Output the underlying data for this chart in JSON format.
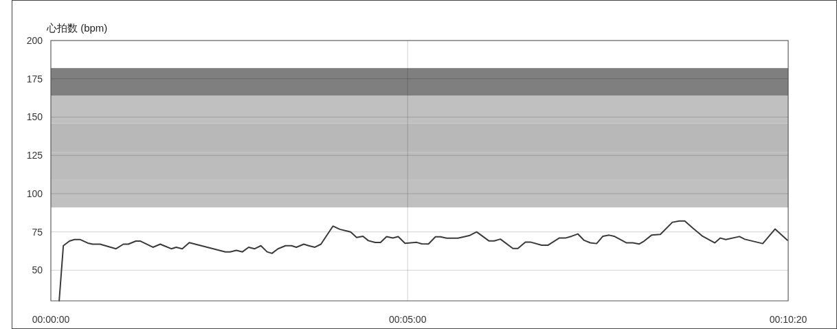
{
  "chart_data": {
    "type": "line",
    "ylabel": "心拍数 (bpm)",
    "xlim": [
      0,
      620
    ],
    "ylim": [
      30,
      200
    ],
    "xticks": [
      {
        "value": 0,
        "label": "00:00:00"
      },
      {
        "value": 300,
        "label": "00:05:00"
      },
      {
        "value": 620,
        "label": "00:10:20"
      }
    ],
    "yticks": [
      50,
      75,
      100,
      125,
      150,
      175,
      200
    ],
    "grid": true,
    "marker": "none",
    "line_style": "solid",
    "bands": [
      {
        "axis": "y",
        "from": 91,
        "to": 109,
        "color": "#c0c0c0"
      },
      {
        "axis": "y",
        "from": 109,
        "to": 127,
        "color": "#bcbcbc"
      },
      {
        "axis": "y",
        "from": 127,
        "to": 146,
        "color": "#b8b8b8"
      },
      {
        "axis": "y",
        "from": 146,
        "to": 164,
        "color": "#c0c0c0"
      },
      {
        "axis": "y",
        "from": 164,
        "to": 182,
        "color": "#7f7f7f"
      }
    ],
    "series": [
      {
        "color": "#3a3a3a",
        "x": [
          7,
          10.5,
          15.6,
          19.8,
          24.8,
          31.1,
          35.2,
          41.4,
          54.8,
          61,
          65.1,
          71.4,
          75.4,
          85.8,
          92,
          95.1,
          101.3,
          105.4,
          110.5,
          116.4,
          146.7,
          150.8,
          156,
          161.1,
          166.3,
          171.4,
          176.6,
          181.8,
          185.9,
          191,
          197.3,
          202.4,
          206.4,
          212.7,
          216.8,
          222,
          227.1,
          237.2,
          243,
          252.1,
          257.1,
          262.4,
          267,
          272.7,
          277.2,
          282.3,
          287.5,
          292.1,
          297.8,
          307.6,
          311.8,
          317.5,
          323.4,
          327.6,
          332.8,
          342.3,
          351.8,
          358,
          368.5,
          372.8,
          378,
          388.5,
          392.7,
          399,
          403.2,
          412.7,
          417.9,
          427.4,
          432.6,
          437.9,
          443.1,
          448.4,
          453.6,
          458.9,
          464.2,
          469.4,
          473.6,
          484.1,
          489.4,
          494.6,
          498.8,
          505.1,
          512.5,
          522.6,
          528.4,
          533,
          539.9,
          548,
          558.3,
          562.9,
          567.5,
          579,
          583.6,
          598.6,
          609,
          619.3
        ],
        "values": [
          30,
          66,
          69,
          70,
          70,
          67.7,
          67,
          67,
          64,
          67,
          67,
          69,
          69,
          65,
          67,
          66,
          64,
          65,
          64,
          68,
          62,
          62,
          63,
          62,
          65,
          64,
          66,
          62,
          61,
          64,
          66,
          66,
          65,
          67,
          66,
          65,
          67,
          78.8,
          76.7,
          75,
          71.4,
          72.2,
          69.3,
          68.1,
          68.1,
          71.9,
          71,
          71.9,
          67.6,
          68.2,
          67.2,
          67.1,
          71.8,
          71.8,
          70.9,
          70.9,
          72.6,
          75,
          69.1,
          69.1,
          70.3,
          64.2,
          64.2,
          68.4,
          68.4,
          66.3,
          66.3,
          71,
          71,
          72.2,
          73.7,
          69.5,
          67.9,
          67.4,
          72.2,
          72.9,
          72.2,
          67.9,
          67.9,
          67.1,
          69,
          72.9,
          73.4,
          81.3,
          82.1,
          82.1,
          77.4,
          72.2,
          67.9,
          71,
          70,
          72,
          70.2,
          67.4,
          76.9,
          69.6
        ]
      }
    ]
  }
}
